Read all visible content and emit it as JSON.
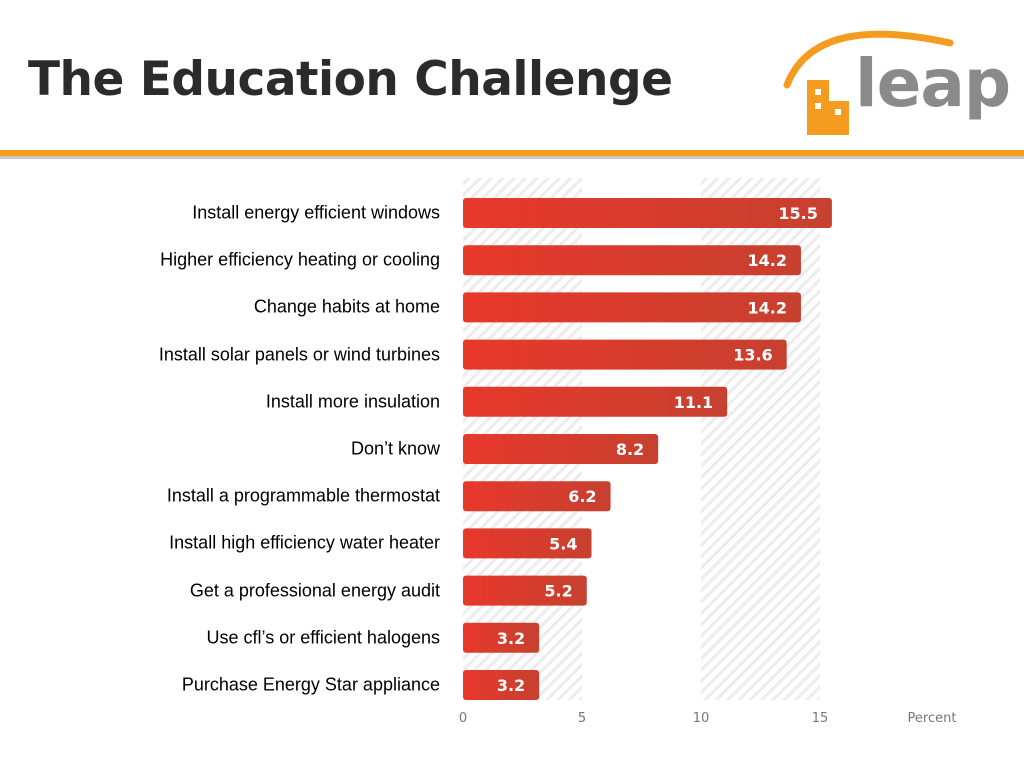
{
  "title": "The Education Challenge",
  "logo": {
    "text": "leap",
    "accent": "#f39c1f",
    "text_color": "#8a8a8a"
  },
  "colors": {
    "bar": "#e03a2f",
    "bar_dark": "#c43a2f",
    "divider": "#f39c1f"
  },
  "chart_data": {
    "type": "bar",
    "orientation": "horizontal",
    "categories": [
      "Install energy  efficient windows",
      "Higher efficiency heating or cooling",
      "Change habits at home",
      "Install solar panels or wind turbines",
      "Install more insulation",
      "Don’t know",
      "Install a programmable thermostat",
      "Install high efficiency water heater",
      "Get a professional energy audit",
      "Use cfl’s or efficient halogens",
      "Purchase Energy Star appliance"
    ],
    "values": [
      15.5,
      14.2,
      14.2,
      13.6,
      11.1,
      8.2,
      6.2,
      5.4,
      5.2,
      3.2,
      3.2
    ],
    "value_labels": [
      "15.5",
      "14.2",
      "14.2",
      "13.6",
      "11.1",
      "8.2",
      "6.2",
      "5.4",
      "5.2",
      "3.2",
      "3.2"
    ],
    "x_ticks": [
      0,
      5,
      10,
      15
    ],
    "x_tick_labels": [
      "0",
      "5",
      "10",
      "15"
    ],
    "xlabel": "Percent",
    "xlim": [
      0,
      15.5
    ],
    "data_labels": true
  }
}
